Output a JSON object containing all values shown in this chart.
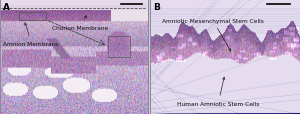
{
  "fig_width": 3.0,
  "fig_height": 1.15,
  "dpi": 100,
  "outer_bg": "#d0cce0",
  "panel_A": {
    "label": "A",
    "label_fontsize": 6.5,
    "ann1_text": "Amnion Membrane",
    "ann2_text": "Chorion Membrane",
    "fontsize": 4.2
  },
  "panel_B": {
    "label": "B",
    "label_fontsize": 6.5,
    "ann1_text": "Human Amniotic Stem Cells",
    "ann2_text": "Amniotic Mesenchymal Stem Cells",
    "fontsize": 4.2
  },
  "arrow_color": "#222222",
  "text_color": "#111111"
}
